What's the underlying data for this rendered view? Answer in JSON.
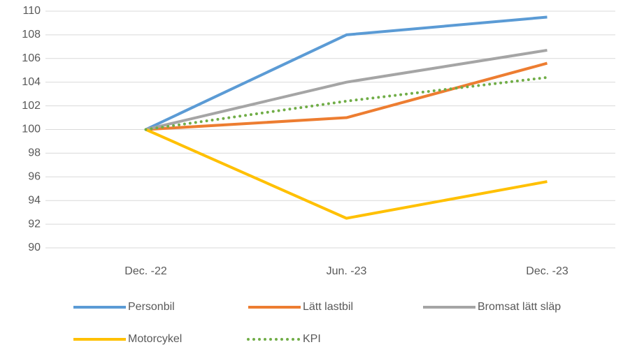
{
  "chart_data": {
    "type": "line",
    "categories": [
      "Dec. -22",
      "Jun. -23",
      "Dec. -23"
    ],
    "series": [
      {
        "name": "Personbil",
        "color": "#5b9bd5",
        "values": [
          100,
          108,
          109.5
        ]
      },
      {
        "name": "Lätt lastbil",
        "color": "#ed7d31",
        "values": [
          100,
          101,
          105.6
        ]
      },
      {
        "name": "Bromsat lätt släp",
        "color": "#a5a5a5",
        "values": [
          100,
          104,
          106.7
        ]
      },
      {
        "name": "Motorcykel",
        "color": "#ffc000",
        "values": [
          100,
          92.5,
          95.6
        ]
      },
      {
        "name": "KPI",
        "color": "#70ad47",
        "dotted": true,
        "values": [
          100,
          102.4,
          104.4
        ]
      }
    ],
    "ylim": [
      90,
      110
    ],
    "yticks": [
      90,
      92,
      94,
      96,
      98,
      100,
      102,
      104,
      106,
      108,
      110
    ],
    "grid": true,
    "legend": "bottom"
  }
}
